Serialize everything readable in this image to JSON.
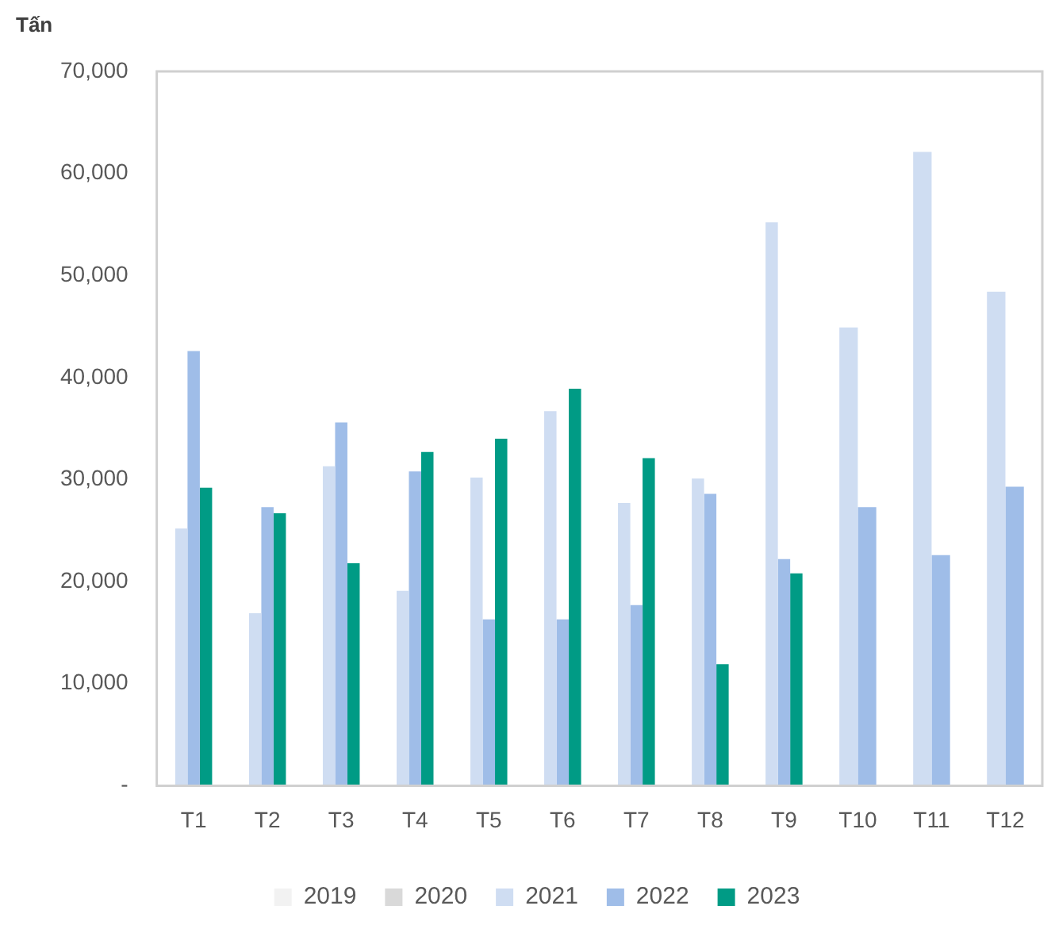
{
  "chart_data": {
    "type": "bar",
    "ylabel": "Tấn",
    "categories": [
      "T1",
      "T2",
      "T3",
      "T4",
      "T5",
      "T6",
      "T7",
      "T8",
      "T9",
      "T10",
      "T11",
      "T12"
    ],
    "series": [
      {
        "name": "2019",
        "color": "#f2f2f2",
        "values": [
          null,
          null,
          null,
          null,
          null,
          null,
          null,
          null,
          null,
          null,
          null,
          null
        ]
      },
      {
        "name": "2020",
        "color": "#d9d9d9",
        "values": [
          null,
          null,
          null,
          null,
          null,
          null,
          null,
          null,
          null,
          null,
          null,
          null
        ]
      },
      {
        "name": "2021",
        "color": "#cfddf2",
        "values": [
          25200,
          16900,
          31300,
          19100,
          30200,
          36700,
          27700,
          30100,
          55200,
          44900,
          62100,
          48400
        ]
      },
      {
        "name": "2022",
        "color": "#9fbde8",
        "values": [
          42600,
          27300,
          35600,
          30800,
          16300,
          16300,
          17700,
          28600,
          22200,
          27300,
          22600,
          29300
        ]
      },
      {
        "name": "2023",
        "color": "#009b85",
        "values": [
          29200,
          26700,
          21800,
          32700,
          34000,
          38900,
          32100,
          11900,
          20800,
          null,
          null,
          null
        ]
      }
    ],
    "ylim": [
      0,
      70000
    ],
    "yticks": [
      {
        "value": 0,
        "label": "-"
      },
      {
        "value": 10000,
        "label": "10,000"
      },
      {
        "value": 20000,
        "label": "20,000"
      },
      {
        "value": 30000,
        "label": "30,000"
      },
      {
        "value": 40000,
        "label": "40,000"
      },
      {
        "value": 50000,
        "label": "50,000"
      },
      {
        "value": 60000,
        "label": "60,000"
      },
      {
        "value": 70000,
        "label": "70,000"
      }
    ],
    "grid": false,
    "legend": "bottom"
  }
}
